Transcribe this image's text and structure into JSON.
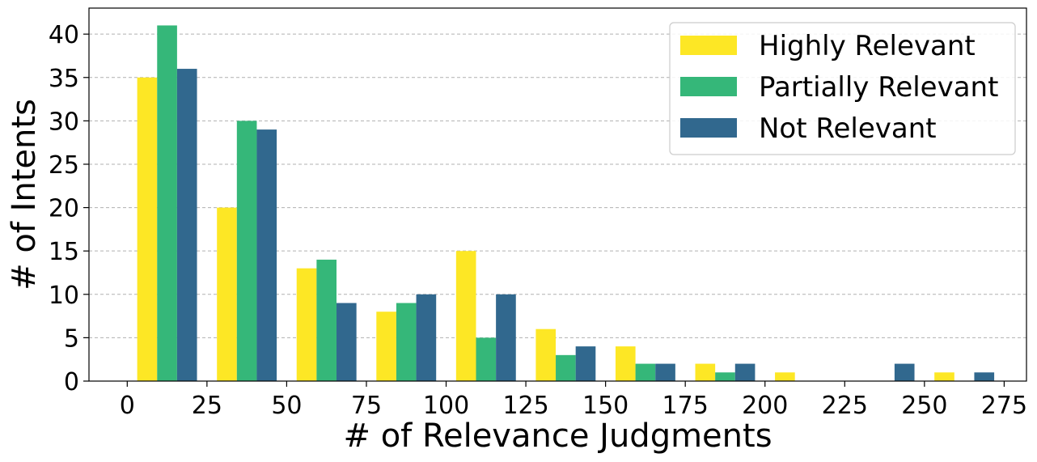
{
  "chart_data": {
    "type": "bar",
    "title": "",
    "xlabel": "# of Relevance Judgments",
    "ylabel": "# of Intents",
    "xlim": [
      -12,
      282
    ],
    "ylim": [
      0,
      43
    ],
    "x_ticks": [
      0,
      25,
      50,
      75,
      100,
      125,
      150,
      175,
      200,
      225,
      250,
      275
    ],
    "y_ticks": [
      0,
      5,
      10,
      15,
      20,
      25,
      30,
      35,
      40
    ],
    "grid": "y-dashed",
    "legend_position": "top-right",
    "bin_width": 25,
    "bin_starts": [
      0,
      25,
      50,
      75,
      100,
      125,
      150,
      175,
      200,
      225,
      250
    ],
    "series": [
      {
        "name": "Highly Relevant",
        "color": "#fde725",
        "values": [
          35,
          20,
          13,
          8,
          15,
          6,
          4,
          2,
          1,
          0,
          1
        ]
      },
      {
        "name": "Partially Relevant",
        "color": "#35b779",
        "values": [
          41,
          30,
          14,
          9,
          5,
          3,
          2,
          1,
          0,
          0,
          0
        ]
      },
      {
        "name": "Not Relevant",
        "color": "#31688e",
        "values": [
          36,
          29,
          9,
          10,
          10,
          4,
          2,
          2,
          0,
          2,
          1
        ]
      }
    ]
  }
}
